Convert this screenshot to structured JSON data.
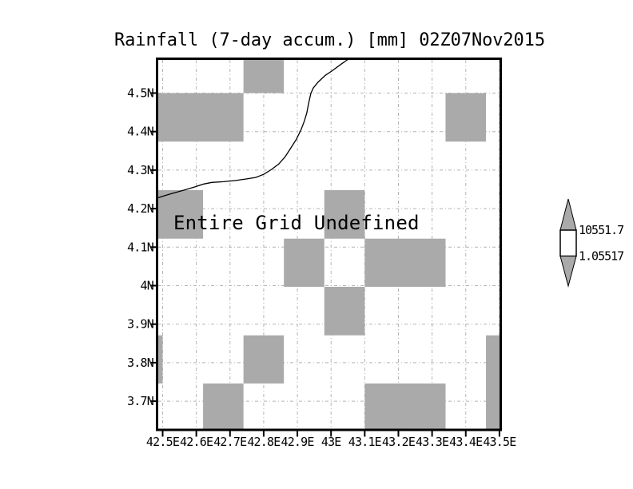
{
  "title": "Rainfall (7-day accum.) [mm] 02Z07Nov2015",
  "chart_data": {
    "type": "heatmap",
    "title": "Rainfall (7-day accum.) [mm] 02Z07Nov2015",
    "message": "Entire Grid Undefined",
    "x_tick_labels": [
      "42.5E",
      "42.6E",
      "42.7E",
      "42.8E",
      "42.9E",
      "43E",
      "43.1E",
      "43.2E",
      "43.3E",
      "43.4E",
      "43.5E"
    ],
    "x_tick_values": [
      42.5,
      42.6,
      42.7,
      42.8,
      42.9,
      43.0,
      43.1,
      43.2,
      43.3,
      43.4,
      43.5
    ],
    "y_tick_labels": [
      "4.5N",
      "4.4N",
      "4.3N",
      "4.2N",
      "4.1N",
      "4N",
      "3.9N",
      "3.8N",
      "3.7N"
    ],
    "y_tick_values": [
      4.5,
      4.4,
      4.3,
      4.2,
      4.1,
      4.0,
      3.9,
      3.8,
      3.7
    ],
    "lon_range": [
      42.482,
      43.506
    ],
    "lat_range": [
      3.623,
      4.59
    ],
    "grid_on": true,
    "undefined_cells": [
      {
        "lon": [
          42.74,
          42.86
        ],
        "lat": [
          4.5,
          4.59
        ]
      },
      {
        "lon": [
          42.482,
          42.74
        ],
        "lat": [
          4.374,
          4.5
        ]
      },
      {
        "lon": [
          43.34,
          43.46
        ],
        "lat": [
          4.374,
          4.5
        ]
      },
      {
        "lon": [
          42.482,
          42.62
        ],
        "lat": [
          4.122,
          4.248
        ]
      },
      {
        "lon": [
          42.98,
          43.1
        ],
        "lat": [
          4.122,
          4.248
        ]
      },
      {
        "lon": [
          42.86,
          42.98
        ],
        "lat": [
          3.997,
          4.122
        ]
      },
      {
        "lon": [
          43.1,
          43.34
        ],
        "lat": [
          3.997,
          4.122
        ]
      },
      {
        "lon": [
          42.98,
          43.1
        ],
        "lat": [
          3.871,
          3.997
        ]
      },
      {
        "lon": [
          42.482,
          42.5
        ],
        "lat": [
          3.746,
          3.871
        ]
      },
      {
        "lon": [
          42.74,
          42.86
        ],
        "lat": [
          3.746,
          3.871
        ]
      },
      {
        "lon": [
          42.62,
          42.74
        ],
        "lat": [
          3.623,
          3.746
        ]
      },
      {
        "lon": [
          43.1,
          43.34
        ],
        "lat": [
          3.623,
          3.746
        ]
      },
      {
        "lon": [
          43.46,
          43.506
        ],
        "lat": [
          3.623,
          3.871
        ]
      }
    ],
    "coastline": [
      [
        43.054,
        4.59
      ],
      [
        43.03,
        4.575
      ],
      [
        43.002,
        4.557
      ],
      [
        42.983,
        4.546
      ],
      [
        42.961,
        4.528
      ],
      [
        42.947,
        4.513
      ],
      [
        42.94,
        4.499
      ],
      [
        42.933,
        4.472
      ],
      [
        42.928,
        4.449
      ],
      [
        42.921,
        4.428
      ],
      [
        42.911,
        4.405
      ],
      [
        42.897,
        4.38
      ],
      [
        42.881,
        4.358
      ],
      [
        42.864,
        4.335
      ],
      [
        42.845,
        4.316
      ],
      [
        42.824,
        4.302
      ],
      [
        42.8,
        4.289
      ],
      [
        42.776,
        4.281
      ],
      [
        42.748,
        4.277
      ],
      [
        42.717,
        4.273
      ],
      [
        42.681,
        4.27
      ],
      [
        42.646,
        4.268
      ],
      [
        42.622,
        4.264
      ],
      [
        42.594,
        4.256
      ],
      [
        42.563,
        4.248
      ],
      [
        42.527,
        4.239
      ],
      [
        42.503,
        4.233
      ],
      [
        42.482,
        4.227
      ]
    ],
    "colorbar": {
      "labels": [
        "10551.7",
        "1.05517"
      ]
    },
    "colors": {
      "undefined_fill": "#aaaaaa",
      "gridline": "#b4b4b4",
      "frame": "#000000",
      "coastline": "#000000",
      "background": "#ffffff"
    }
  }
}
